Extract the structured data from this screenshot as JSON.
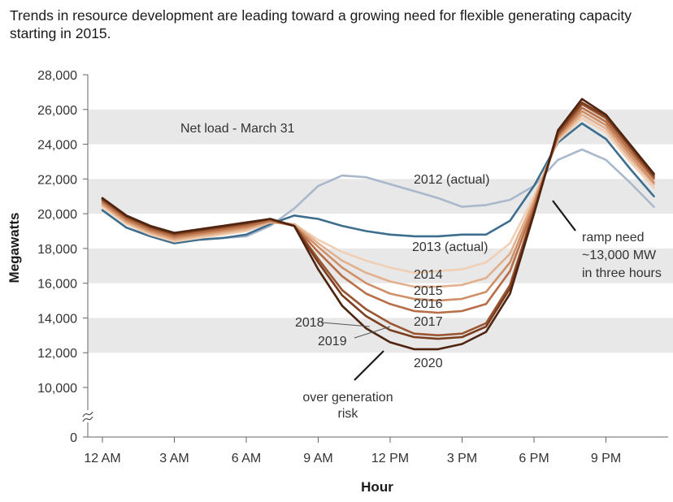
{
  "title": "Trends in resource development are leading toward a growing need for flexible generating capacity starting in 2015.",
  "chart_data": {
    "type": "line",
    "xlabel": "Hour",
    "ylabel": "Megawatts",
    "x_tick_labels": [
      "12 AM",
      "3 AM",
      "6 AM",
      "9 AM",
      "12 PM",
      "3 PM",
      "6 PM",
      "9 PM"
    ],
    "x_tick_hours": [
      0,
      3,
      6,
      9,
      12,
      15,
      18,
      21
    ],
    "y_tick_labels": [
      "0",
      "10,000",
      "12,000",
      "14,000",
      "16,000",
      "18,000",
      "20,000",
      "22,000",
      "24,000",
      "26,000",
      "28,000"
    ],
    "y_tick_values": [
      0,
      10000,
      12000,
      14000,
      16000,
      18000,
      20000,
      22000,
      24000,
      26000,
      28000
    ],
    "ylim": [
      10000,
      28000
    ],
    "axis_break": true,
    "grid": "alternating horizontal bands",
    "x_hours": [
      0,
      1,
      2,
      3,
      4,
      5,
      6,
      7,
      8,
      9,
      10,
      11,
      12,
      13,
      14,
      15,
      16,
      17,
      18,
      19,
      20,
      21,
      22,
      23
    ],
    "series": [
      {
        "name": "2012 (actual)",
        "color": "#aab8cc",
        "values": [
          20200,
          19200,
          18700,
          18300,
          18500,
          18600,
          18700,
          19300,
          20300,
          21600,
          22200,
          22100,
          21700,
          21300,
          20900,
          20400,
          20500,
          20800,
          21600,
          23100,
          23700,
          23100,
          21800,
          20400
        ]
      },
      {
        "name": "2013 (actual)",
        "color": "#3e6e8e",
        "values": [
          20200,
          19200,
          18700,
          18300,
          18500,
          18600,
          18800,
          19400,
          19900,
          19700,
          19300,
          19000,
          18800,
          18700,
          18700,
          18800,
          18800,
          19600,
          21600,
          24100,
          25200,
          24300,
          22600,
          21000
        ]
      },
      {
        "name": "2014",
        "color": "#f0cfb4",
        "values": [
          20400,
          19400,
          18800,
          18400,
          18600,
          18800,
          19000,
          19500,
          19400,
          18500,
          17800,
          17300,
          16900,
          16600,
          16700,
          16800,
          17200,
          18300,
          21000,
          24200,
          25500,
          24700,
          23000,
          21500
        ]
      },
      {
        "name": "2015",
        "color": "#e2b08c",
        "values": [
          20500,
          19500,
          18900,
          18500,
          18700,
          18900,
          19100,
          19500,
          19400,
          18300,
          17300,
          16600,
          16100,
          15800,
          15800,
          15900,
          16300,
          17700,
          20800,
          24300,
          25700,
          24900,
          23200,
          21700
        ]
      },
      {
        "name": "2016",
        "color": "#cf9068",
        "values": [
          20600,
          19600,
          19000,
          18600,
          18800,
          19000,
          19200,
          19600,
          19300,
          18100,
          16900,
          16000,
          15400,
          15100,
          15000,
          15100,
          15500,
          17200,
          20600,
          24400,
          25900,
          25100,
          23400,
          21800
        ]
      },
      {
        "name": "2017",
        "color": "#b86f47",
        "values": [
          20700,
          19700,
          19100,
          18700,
          18900,
          19100,
          19300,
          19600,
          19300,
          17800,
          16400,
          15400,
          14800,
          14400,
          14300,
          14400,
          14800,
          16700,
          20400,
          24500,
          26100,
          25300,
          23600,
          22000
        ]
      },
      {
        "name": "2018",
        "color": "#9a5632",
        "values": [
          20800,
          19800,
          19200,
          18800,
          19000,
          19200,
          19400,
          19700,
          19300,
          17400,
          15600,
          14500,
          13700,
          13100,
          13000,
          13100,
          13700,
          15900,
          20200,
          24600,
          26300,
          25500,
          23800,
          22100
        ]
      },
      {
        "name": "2019",
        "color": "#7a3e1f",
        "values": [
          20850,
          19850,
          19250,
          18850,
          19050,
          19250,
          19450,
          19700,
          19300,
          17200,
          15300,
          14100,
          13300,
          12900,
          12800,
          12900,
          13500,
          15700,
          20100,
          24700,
          26400,
          25600,
          23900,
          22200
        ]
      },
      {
        "name": "2020",
        "color": "#4e2410",
        "values": [
          20900,
          19900,
          19300,
          18900,
          19100,
          19300,
          19500,
          19700,
          19300,
          16800,
          14700,
          13400,
          12600,
          12200,
          12200,
          12500,
          13200,
          15400,
          20000,
          24800,
          26600,
          25700,
          24000,
          22300
        ]
      }
    ],
    "annotations": {
      "net_load": "Net load - March 31",
      "label_2012": "2012 (actual)",
      "label_2013": "2013 (actual)",
      "label_2014": "2014",
      "label_2015": "2015",
      "label_2016": "2016",
      "label_2017": "2017",
      "label_2018": "2018",
      "label_2019": "2019",
      "label_2020": "2020",
      "ramp_line1": "ramp need",
      "ramp_line2": "~13,000 MW",
      "ramp_line3": "in three hours",
      "over_line1": "over generation",
      "over_line2": "risk"
    }
  }
}
